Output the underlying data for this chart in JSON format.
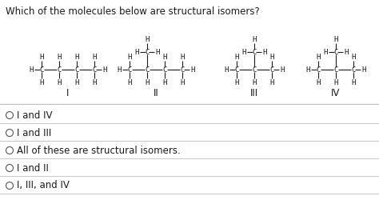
{
  "title": "Which of the molecules below are structural isomers?",
  "background_color": "#ffffff",
  "text_color": "#1a1a1a",
  "options": [
    "I and IV",
    "I and III",
    "All of these are structural isomers.",
    "I and II",
    "I, III, and IV"
  ],
  "font_size_title": 8.5,
  "font_size_mol": 6.5,
  "font_size_label": 8.5,
  "font_size_options": 8.5,
  "mol_color": "#1a1a1a",
  "sep_color": "#bbbbbb",
  "circle_color": "#555555"
}
